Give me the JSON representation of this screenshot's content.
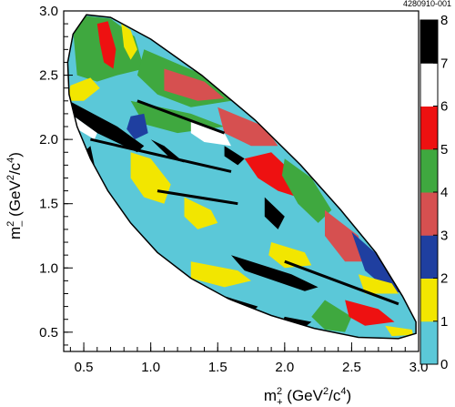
{
  "figure_id": "4280910-001",
  "chart_data": {
    "type": "heatmap",
    "title": "",
    "xlabel": "m²₊ (GeV²/c⁴)",
    "ylabel": "m²₋ (GeV²/c⁴)",
    "xlim": [
      0.35,
      3.0
    ],
    "ylim": [
      0.35,
      3.0
    ],
    "x_ticks": [
      "0.5",
      "1.0",
      "1.5",
      "2.0",
      "2.5",
      "3.0"
    ],
    "y_ticks": [
      "0.5",
      "1.0",
      "1.5",
      "2.0",
      "2.5",
      "3.0"
    ],
    "colorbar": {
      "levels": [
        "0",
        "1",
        "2",
        "3",
        "4",
        "5",
        "6",
        "7",
        "8"
      ],
      "colors": [
        "#ffffff",
        "#5bc8d8",
        "#f2e600",
        "#1f3fa0",
        "#d65050",
        "#3fa83f",
        "#ee1111",
        "#ffffff",
        "#000000"
      ]
    },
    "boundary": [
      [
        0.52,
        2.97
      ],
      [
        0.42,
        2.82
      ],
      [
        0.38,
        2.6
      ],
      [
        0.39,
        2.35
      ],
      [
        0.45,
        2.1
      ],
      [
        0.55,
        1.85
      ],
      [
        0.68,
        1.6
      ],
      [
        0.85,
        1.35
      ],
      [
        1.05,
        1.12
      ],
      [
        1.3,
        0.92
      ],
      [
        1.58,
        0.76
      ],
      [
        1.9,
        0.63
      ],
      [
        2.22,
        0.53
      ],
      [
        2.55,
        0.46
      ],
      [
        2.85,
        0.45
      ],
      [
        2.98,
        0.49
      ],
      [
        2.98,
        0.58
      ],
      [
        2.88,
        0.78
      ],
      [
        2.68,
        1.12
      ],
      [
        2.42,
        1.45
      ],
      [
        2.12,
        1.8
      ],
      [
        1.78,
        2.15
      ],
      [
        1.38,
        2.5
      ],
      [
        1.0,
        2.78
      ],
      [
        0.7,
        2.95
      ]
    ],
    "regions": [
      {
        "level": 1,
        "poly": [
          [
            0.52,
            2.97
          ],
          [
            0.42,
            2.82
          ],
          [
            0.38,
            2.6
          ],
          [
            0.39,
            2.35
          ],
          [
            0.45,
            2.1
          ],
          [
            0.55,
            1.85
          ],
          [
            0.68,
            1.6
          ],
          [
            0.85,
            1.35
          ],
          [
            1.05,
            1.12
          ],
          [
            1.3,
            0.92
          ],
          [
            1.58,
            0.76
          ],
          [
            1.9,
            0.63
          ],
          [
            2.22,
            0.53
          ],
          [
            2.55,
            0.46
          ],
          [
            2.85,
            0.45
          ],
          [
            2.98,
            0.49
          ],
          [
            2.98,
            0.58
          ],
          [
            2.88,
            0.78
          ],
          [
            2.68,
            1.12
          ],
          [
            2.42,
            1.45
          ],
          [
            2.12,
            1.8
          ],
          [
            1.78,
            2.15
          ],
          [
            1.38,
            2.5
          ],
          [
            1.0,
            2.78
          ],
          [
            0.7,
            2.95
          ]
        ]
      },
      {
        "level": 5,
        "poly": [
          [
            0.42,
            2.85
          ],
          [
            0.52,
            2.96
          ],
          [
            0.7,
            2.94
          ],
          [
            0.88,
            2.8
          ],
          [
            0.95,
            2.55
          ],
          [
            0.75,
            2.5
          ],
          [
            0.6,
            2.45
          ],
          [
            0.45,
            2.5
          ]
        ]
      },
      {
        "level": 6,
        "poly": [
          [
            0.6,
            2.9
          ],
          [
            0.68,
            2.92
          ],
          [
            0.74,
            2.7
          ],
          [
            0.72,
            2.55
          ],
          [
            0.65,
            2.6
          ],
          [
            0.62,
            2.75
          ]
        ]
      },
      {
        "level": 2,
        "poly": [
          [
            0.78,
            2.9
          ],
          [
            0.85,
            2.85
          ],
          [
            0.9,
            2.7
          ],
          [
            0.85,
            2.62
          ],
          [
            0.8,
            2.72
          ]
        ]
      },
      {
        "level": 5,
        "poly": [
          [
            0.95,
            2.7
          ],
          [
            1.4,
            2.5
          ],
          [
            1.6,
            2.3
          ],
          [
            1.3,
            2.25
          ],
          [
            1.05,
            2.35
          ],
          [
            0.9,
            2.5
          ]
        ]
      },
      {
        "level": 4,
        "poly": [
          [
            1.1,
            2.55
          ],
          [
            1.4,
            2.45
          ],
          [
            1.55,
            2.32
          ],
          [
            1.35,
            2.3
          ],
          [
            1.1,
            2.38
          ]
        ]
      },
      {
        "level": 5,
        "poly": [
          [
            0.85,
            2.3
          ],
          [
            1.3,
            2.2
          ],
          [
            1.55,
            2.1
          ],
          [
            1.2,
            2.05
          ],
          [
            0.95,
            2.12
          ]
        ]
      },
      {
        "level": 4,
        "poly": [
          [
            1.5,
            2.25
          ],
          [
            1.85,
            2.1
          ],
          [
            1.95,
            1.95
          ],
          [
            1.75,
            1.95
          ],
          [
            1.55,
            2.05
          ]
        ]
      },
      {
        "level": 0,
        "poly": [
          [
            1.3,
            2.15
          ],
          [
            1.55,
            2.05
          ],
          [
            1.6,
            1.95
          ],
          [
            1.4,
            1.98
          ],
          [
            1.3,
            2.05
          ]
        ]
      },
      {
        "level": 3,
        "poly": [
          [
            0.85,
            2.18
          ],
          [
            0.95,
            2.2
          ],
          [
            0.98,
            2.05
          ],
          [
            0.88,
            2.0
          ],
          [
            0.82,
            2.08
          ]
        ]
      },
      {
        "level": 2,
        "poly": [
          [
            0.38,
            2.3
          ],
          [
            0.5,
            2.3
          ],
          [
            0.62,
            2.4
          ],
          [
            0.55,
            2.48
          ],
          [
            0.4,
            2.42
          ]
        ]
      },
      {
        "level": 8,
        "poly": [
          [
            0.39,
            2.3
          ],
          [
            0.75,
            2.1
          ],
          [
            0.95,
            1.95
          ],
          [
            0.9,
            1.9
          ],
          [
            0.6,
            2.05
          ],
          [
            0.4,
            2.2
          ]
        ]
      },
      {
        "level": 0,
        "poly": [
          [
            0.4,
            2.2
          ],
          [
            0.6,
            2.05
          ],
          [
            0.58,
            2.0
          ],
          [
            0.45,
            2.08
          ]
        ]
      },
      {
        "level": 2,
        "poly": [
          [
            0.85,
            1.9
          ],
          [
            1.0,
            1.85
          ],
          [
            1.15,
            1.65
          ],
          [
            1.1,
            1.5
          ],
          [
            0.95,
            1.55
          ],
          [
            0.85,
            1.7
          ]
        ]
      },
      {
        "level": 2,
        "poly": [
          [
            0.55,
            1.75
          ],
          [
            0.65,
            1.65
          ],
          [
            0.62,
            1.55
          ],
          [
            0.55,
            1.6
          ]
        ]
      },
      {
        "level": 8,
        "poly": [
          [
            0.45,
            1.85
          ],
          [
            0.55,
            1.95
          ],
          [
            0.6,
            1.7
          ],
          [
            0.52,
            1.65
          ],
          [
            0.45,
            1.75
          ]
        ]
      },
      {
        "level": 8,
        "poly": [
          [
            0.6,
            1.5
          ],
          [
            0.75,
            1.42
          ],
          [
            0.72,
            1.35
          ],
          [
            0.62,
            1.4
          ]
        ]
      },
      {
        "level": 8,
        "poly": [
          [
            1.0,
            2.0
          ],
          [
            1.1,
            1.95
          ],
          [
            1.25,
            1.82
          ],
          [
            1.15,
            1.85
          ]
        ]
      },
      {
        "level": 2,
        "poly": [
          [
            1.25,
            1.55
          ],
          [
            1.45,
            1.45
          ],
          [
            1.5,
            1.35
          ],
          [
            1.35,
            1.3
          ],
          [
            1.25,
            1.4
          ]
        ]
      },
      {
        "level": 8,
        "poly": [
          [
            1.55,
            1.95
          ],
          [
            1.7,
            1.85
          ],
          [
            1.65,
            1.8
          ],
          [
            1.55,
            1.87
          ]
        ]
      },
      {
        "level": 6,
        "poly": [
          [
            1.7,
            1.85
          ],
          [
            1.9,
            1.9
          ],
          [
            2.05,
            1.75
          ],
          [
            2.1,
            1.55
          ],
          [
            1.95,
            1.6
          ],
          [
            1.8,
            1.7
          ]
        ]
      },
      {
        "level": 5,
        "poly": [
          [
            2.0,
            1.85
          ],
          [
            2.2,
            1.7
          ],
          [
            2.35,
            1.45
          ],
          [
            2.25,
            1.35
          ],
          [
            2.1,
            1.5
          ],
          [
            1.98,
            1.72
          ]
        ]
      },
      {
        "level": 4,
        "poly": [
          [
            2.3,
            1.45
          ],
          [
            2.55,
            1.25
          ],
          [
            2.6,
            1.05
          ],
          [
            2.45,
            1.05
          ],
          [
            2.3,
            1.25
          ]
        ]
      },
      {
        "level": 3,
        "poly": [
          [
            2.5,
            1.28
          ],
          [
            2.75,
            1.05
          ],
          [
            2.9,
            0.82
          ],
          [
            2.8,
            0.8
          ],
          [
            2.6,
            0.98
          ]
        ]
      },
      {
        "level": 8,
        "poly": [
          [
            1.85,
            1.55
          ],
          [
            2.0,
            1.4
          ],
          [
            1.95,
            1.3
          ],
          [
            1.85,
            1.4
          ]
        ]
      },
      {
        "level": 8,
        "poly": [
          [
            1.6,
            1.1
          ],
          [
            2.05,
            0.95
          ],
          [
            2.25,
            0.85
          ],
          [
            2.15,
            0.82
          ],
          [
            1.7,
            0.98
          ]
        ]
      },
      {
        "level": 2,
        "poly": [
          [
            1.3,
            1.05
          ],
          [
            1.65,
            0.98
          ],
          [
            1.75,
            0.9
          ],
          [
            1.55,
            0.85
          ],
          [
            1.3,
            0.92
          ]
        ]
      },
      {
        "level": 2,
        "poly": [
          [
            1.9,
            1.2
          ],
          [
            2.15,
            1.12
          ],
          [
            2.2,
            1.02
          ],
          [
            2.0,
            1.0
          ],
          [
            1.88,
            1.1
          ]
        ]
      },
      {
        "level": 2,
        "poly": [
          [
            2.55,
            0.95
          ],
          [
            2.8,
            0.88
          ],
          [
            2.85,
            0.8
          ],
          [
            2.6,
            0.8
          ]
        ]
      },
      {
        "level": 5,
        "poly": [
          [
            2.3,
            0.75
          ],
          [
            2.5,
            0.62
          ],
          [
            2.45,
            0.5
          ],
          [
            2.3,
            0.52
          ],
          [
            2.2,
            0.62
          ]
        ]
      },
      {
        "level": 6,
        "poly": [
          [
            2.45,
            0.75
          ],
          [
            2.7,
            0.68
          ],
          [
            2.82,
            0.58
          ],
          [
            2.6,
            0.55
          ],
          [
            2.48,
            0.62
          ]
        ]
      },
      {
        "level": 8,
        "poly": [
          [
            1.0,
            1.12
          ],
          [
            1.25,
            0.95
          ],
          [
            1.2,
            0.9
          ],
          [
            1.05,
            0.98
          ]
        ]
      },
      {
        "level": 8,
        "poly": [
          [
            1.55,
            0.78
          ],
          [
            1.8,
            0.7
          ],
          [
            1.75,
            0.65
          ],
          [
            1.55,
            0.72
          ]
        ]
      },
      {
        "level": 8,
        "poly": [
          [
            2.0,
            0.62
          ],
          [
            2.2,
            0.58
          ],
          [
            2.15,
            0.54
          ],
          [
            1.98,
            0.58
          ]
        ]
      },
      {
        "level": 2,
        "poly": [
          [
            2.75,
            0.55
          ],
          [
            2.95,
            0.52
          ],
          [
            2.96,
            0.48
          ],
          [
            2.8,
            0.47
          ]
        ]
      }
    ],
    "lines": [
      {
        "level": 8,
        "pts": [
          [
            0.55,
            2.0
          ],
          [
            1.6,
            1.75
          ]
        ]
      },
      {
        "level": 8,
        "pts": [
          [
            1.05,
            1.6
          ],
          [
            1.65,
            1.5
          ]
        ]
      },
      {
        "level": 8,
        "pts": [
          [
            2.0,
            1.05
          ],
          [
            2.85,
            0.72
          ]
        ]
      },
      {
        "level": 8,
        "pts": [
          [
            0.9,
            2.3
          ],
          [
            1.55,
            2.05
          ]
        ]
      }
    ]
  }
}
